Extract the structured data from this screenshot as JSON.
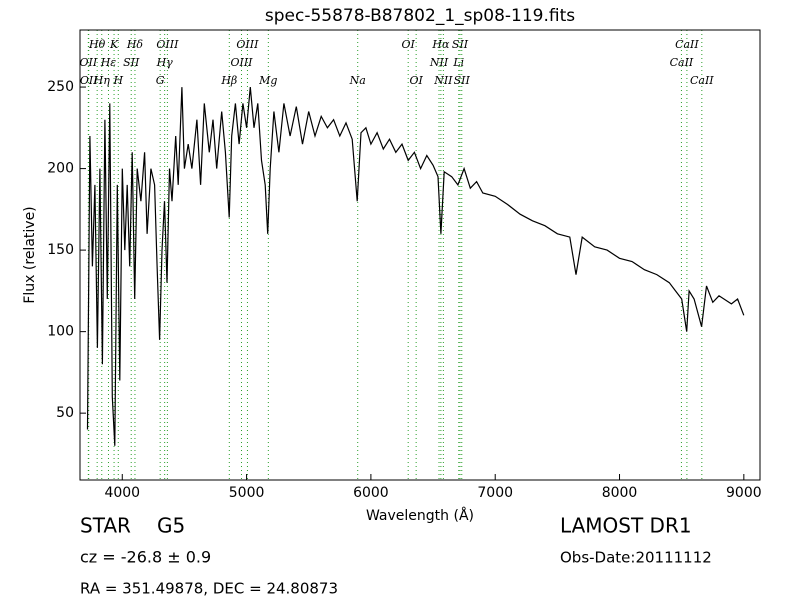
{
  "chart_data": {
    "type": "line",
    "title": "spec-55878-B87802_1_sp08-119.fits",
    "x_label": "Wavelength (Å)",
    "y_label": "Flux (relative)",
    "xlim": [
      3660,
      9130
    ],
    "ylim": [
      9,
      285
    ],
    "xticks": [
      4000,
      5000,
      6000,
      7000,
      8000,
      9000
    ],
    "yticks": [
      50,
      100,
      150,
      200,
      250
    ],
    "color": "#000000",
    "line_color": "#2ca02c",
    "x": [
      3720,
      3740,
      3760,
      3780,
      3800,
      3820,
      3840,
      3860,
      3880,
      3900,
      3920,
      3940,
      3960,
      3980,
      4000,
      4020,
      4040,
      4060,
      4080,
      4100,
      4120,
      4150,
      4180,
      4200,
      4230,
      4260,
      4280,
      4300,
      4320,
      4340,
      4360,
      4380,
      4400,
      4430,
      4450,
      4480,
      4500,
      4530,
      4560,
      4600,
      4630,
      4660,
      4700,
      4730,
      4760,
      4800,
      4830,
      4860,
      4880,
      4910,
      4940,
      4970,
      5000,
      5030,
      5060,
      5090,
      5120,
      5150,
      5170,
      5190,
      5220,
      5260,
      5300,
      5350,
      5400,
      5450,
      5500,
      5550,
      5600,
      5650,
      5700,
      5750,
      5800,
      5850,
      5890,
      5920,
      5960,
      6000,
      6050,
      6100,
      6150,
      6200,
      6250,
      6300,
      6350,
      6400,
      6450,
      6500,
      6540,
      6563,
      6590,
      6650,
      6700,
      6750,
      6800,
      6850,
      6900,
      7000,
      7100,
      7200,
      7300,
      7400,
      7500,
      7600,
      7650,
      7700,
      7800,
      7900,
      8000,
      8100,
      8200,
      8300,
      8400,
      8450,
      8500,
      8540,
      8560,
      8600,
      8660,
      8700,
      8750,
      8800,
      8900,
      8950,
      9000
    ],
    "values": [
      40,
      220,
      140,
      190,
      90,
      200,
      80,
      230,
      120,
      240,
      60,
      30,
      190,
      70,
      200,
      150,
      190,
      140,
      210,
      120,
      200,
      180,
      210,
      160,
      200,
      190,
      140,
      95,
      150,
      180,
      130,
      200,
      180,
      220,
      190,
      250,
      200,
      215,
      200,
      230,
      190,
      240,
      210,
      230,
      200,
      235,
      210,
      170,
      220,
      240,
      215,
      240,
      225,
      250,
      225,
      240,
      205,
      190,
      160,
      200,
      235,
      210,
      240,
      220,
      238,
      215,
      235,
      220,
      232,
      225,
      230,
      220,
      228,
      218,
      180,
      222,
      225,
      215,
      222,
      212,
      218,
      210,
      215,
      205,
      210,
      200,
      208,
      202,
      195,
      160,
      198,
      195,
      190,
      200,
      188,
      192,
      185,
      183,
      178,
      172,
      168,
      165,
      160,
      158,
      135,
      158,
      152,
      150,
      145,
      143,
      138,
      135,
      130,
      125,
      120,
      100,
      125,
      120,
      103,
      128,
      118,
      122,
      117,
      120,
      110
    ],
    "line_labels": [
      [
        {
          "label": "Hθ",
          "wavelength": 3798
        },
        {
          "label": "K",
          "wavelength": 3934
        },
        {
          "label": "Hδ",
          "wavelength": 4102
        },
        {
          "label": "OIII",
          "wavelength": 4363
        },
        {
          "label": "OIII",
          "wavelength": 5007
        },
        {
          "label": "OI",
          "wavelength": 6300
        },
        {
          "label": "Hα",
          "wavelength": 6563
        },
        {
          "label": "SII",
          "wavelength": 6717
        },
        {
          "label": "CaII",
          "wavelength": 8542
        }
      ],
      [
        {
          "label": "OII",
          "wavelength": 3727
        },
        {
          "label": "Hε",
          "wavelength": 3889
        },
        {
          "label": "SII",
          "wavelength": 4072
        },
        {
          "label": "Hγ",
          "wavelength": 4341
        },
        {
          "label": "OIII",
          "wavelength": 4959
        },
        {
          "label": "NII",
          "wavelength": 6548
        },
        {
          "label": "Li",
          "wavelength": 6707
        },
        {
          "label": "CaII",
          "wavelength": 8498
        }
      ],
      [
        {
          "label": "OII",
          "wavelength": 3730
        },
        {
          "label": "Hη",
          "wavelength": 3835
        },
        {
          "label": "H",
          "wavelength": 3968
        },
        {
          "label": "G",
          "wavelength": 4305
        },
        {
          "label": "Hβ",
          "wavelength": 4861
        },
        {
          "label": "Mg",
          "wavelength": 5175
        },
        {
          "label": "Na",
          "wavelength": 5894
        },
        {
          "label": "OI",
          "wavelength": 6364
        },
        {
          "label": "NII",
          "wavelength": 6583
        },
        {
          "label": "SII",
          "wavelength": 6731
        },
        {
          "label": "CaII",
          "wavelength": 8662
        }
      ]
    ],
    "object_class": "STAR",
    "subclass": "G5",
    "redshift_text": "cz = -26.8 ± 0.9",
    "coordinates": "RA = 351.49878, DEC = 24.80873",
    "survey": "LAMOST DR1",
    "obs_date": "Obs-Date:20111112"
  }
}
